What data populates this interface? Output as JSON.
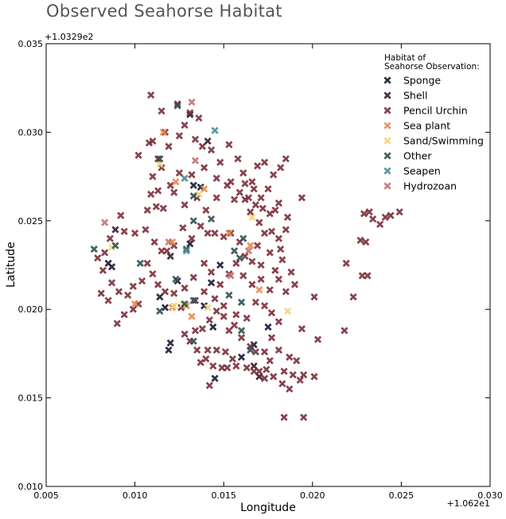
{
  "chart_data": {
    "type": "scatter",
    "title": "Observed Seahorse Habitat",
    "xlabel": "Longitude",
    "ylabel": "Latitude",
    "xlim": [
      0.005,
      0.03
    ],
    "ylim": [
      0.01,
      0.035
    ],
    "x_offset_label": "+1.062e1",
    "y_offset_label": "+1.0329e2",
    "x_ticks": [
      0.005,
      0.01,
      0.015,
      0.02,
      0.025,
      0.03
    ],
    "x_tick_labels": [
      "0.005",
      "0.010",
      "0.015",
      "0.020",
      "0.025",
      "0.030"
    ],
    "y_ticks": [
      0.01,
      0.015,
      0.02,
      0.025,
      0.03,
      0.035
    ],
    "y_tick_labels": [
      "0.010",
      "0.015",
      "0.020",
      "0.025",
      "0.030",
      "0.035"
    ],
    "grid": false,
    "legend_title": "Habitat of\nSeahorse Observation:",
    "legend_position": "top-right",
    "series": [
      {
        "name": "Sponge",
        "color": "#1c1a33",
        "points": [
          [
            0.0131,
            0.031
          ],
          [
            0.0133,
            0.027
          ],
          [
            0.0137,
            0.0269
          ],
          [
            0.0114,
            0.0207
          ],
          [
            0.0117,
            0.0201
          ],
          [
            0.0124,
            0.0216
          ],
          [
            0.0131,
            0.0237
          ],
          [
            0.0148,
            0.0225
          ],
          [
            0.0143,
            0.0215
          ],
          [
            0.0139,
            0.0202
          ],
          [
            0.0144,
            0.019
          ],
          [
            0.012,
            0.0181
          ],
          [
            0.0119,
            0.0177
          ],
          [
            0.016,
            0.0173
          ],
          [
            0.0167,
            0.018
          ],
          [
            0.0175,
            0.019
          ],
          [
            0.0145,
            0.0161
          ],
          [
            0.0085,
            0.0226
          ],
          [
            0.0087,
            0.0224
          ]
        ]
      },
      {
        "name": "Shell",
        "color": "#3a1c2c",
        "points": [
          [
            0.0089,
            0.0245
          ],
          [
            0.0141,
            0.0295
          ],
          [
            0.012,
            0.023
          ],
          [
            0.0167,
            0.0168
          ],
          [
            0.017,
            0.0162
          ]
        ]
      },
      {
        "name": "Pencil Urchin",
        "color": "#7b2e38",
        "points": [
          [
            0.0109,
            0.0321
          ],
          [
            0.0115,
            0.0312
          ],
          [
            0.0124,
            0.0316
          ],
          [
            0.0131,
            0.0311
          ],
          [
            0.0136,
            0.0308
          ],
          [
            0.0117,
            0.03
          ],
          [
            0.0128,
            0.0304
          ],
          [
            0.0134,
            0.0296
          ],
          [
            0.0125,
            0.0298
          ],
          [
            0.0119,
            0.0292
          ],
          [
            0.0108,
            0.0294
          ],
          [
            0.011,
            0.0295
          ],
          [
            0.0113,
            0.0285
          ],
          [
            0.0102,
            0.0287
          ],
          [
            0.0138,
            0.0292
          ],
          [
            0.0143,
            0.029
          ],
          [
            0.0148,
            0.0283
          ],
          [
            0.0153,
            0.0293
          ],
          [
            0.0158,
            0.0285
          ],
          [
            0.0161,
            0.0277
          ],
          [
            0.0154,
            0.0272
          ],
          [
            0.0146,
            0.0274
          ],
          [
            0.0139,
            0.028
          ],
          [
            0.0132,
            0.0276
          ],
          [
            0.0125,
            0.0277
          ],
          [
            0.012,
            0.027
          ],
          [
            0.0113,
            0.0267
          ],
          [
            0.0109,
            0.0265
          ],
          [
            0.0107,
            0.0256
          ],
          [
            0.0112,
            0.0258
          ],
          [
            0.0116,
            0.0257
          ],
          [
            0.0122,
            0.0266
          ],
          [
            0.0128,
            0.0259
          ],
          [
            0.0135,
            0.0263
          ],
          [
            0.014,
            0.0256
          ],
          [
            0.0146,
            0.0263
          ],
          [
            0.0152,
            0.027
          ],
          [
            0.0156,
            0.0262
          ],
          [
            0.0162,
            0.0262
          ],
          [
            0.0167,
            0.0268
          ],
          [
            0.0171,
            0.0263
          ],
          [
            0.0165,
            0.0255
          ],
          [
            0.017,
            0.0249
          ],
          [
            0.0176,
            0.0254
          ],
          [
            0.0181,
            0.026
          ],
          [
            0.0175,
            0.0268
          ],
          [
            0.0178,
            0.0276
          ],
          [
            0.0182,
            0.028
          ],
          [
            0.0185,
            0.0285
          ],
          [
            0.0173,
            0.0283
          ],
          [
            0.0169,
            0.0281
          ],
          [
            0.0166,
            0.0272
          ],
          [
            0.0162,
            0.0271
          ],
          [
            0.0159,
            0.0266
          ],
          [
            0.0164,
            0.0263
          ],
          [
            0.0168,
            0.0259
          ],
          [
            0.0172,
            0.0257
          ],
          [
            0.0179,
            0.0256
          ],
          [
            0.0186,
            0.0252
          ],
          [
            0.0194,
            0.0263
          ],
          [
            0.0185,
            0.0245
          ],
          [
            0.0181,
            0.024
          ],
          [
            0.0177,
            0.0244
          ],
          [
            0.0173,
            0.0243
          ],
          [
            0.0169,
            0.0236
          ],
          [
            0.0176,
            0.0232
          ],
          [
            0.0182,
            0.0234
          ],
          [
            0.0183,
            0.0228
          ],
          [
            0.0179,
            0.0222
          ],
          [
            0.0171,
            0.0225
          ],
          [
            0.0166,
            0.0227
          ],
          [
            0.0162,
            0.023
          ],
          [
            0.0159,
            0.0238
          ],
          [
            0.0154,
            0.0243
          ],
          [
            0.015,
            0.0241
          ],
          [
            0.0145,
            0.0243
          ],
          [
            0.0141,
            0.0243
          ],
          [
            0.0137,
            0.0247
          ],
          [
            0.0132,
            0.024
          ],
          [
            0.0127,
            0.0246
          ],
          [
            0.0122,
            0.0236
          ],
          [
            0.0118,
            0.0233
          ],
          [
            0.0115,
            0.0233
          ],
          [
            0.0111,
            0.0238
          ],
          [
            0.0106,
            0.0245
          ],
          [
            0.01,
            0.0243
          ],
          [
            0.0094,
            0.0244
          ],
          [
            0.0092,
            0.0253
          ],
          [
            0.0086,
            0.024
          ],
          [
            0.0083,
            0.0232
          ],
          [
            0.0079,
            0.0229
          ],
          [
            0.0082,
            0.0222
          ],
          [
            0.0087,
            0.0215
          ],
          [
            0.0091,
            0.021
          ],
          [
            0.0096,
            0.0208
          ],
          [
            0.0099,
            0.0213
          ],
          [
            0.0104,
            0.0216
          ],
          [
            0.0102,
            0.0203
          ],
          [
            0.0099,
            0.02
          ],
          [
            0.0094,
            0.0197
          ],
          [
            0.009,
            0.0192
          ],
          [
            0.0085,
            0.0205
          ],
          [
            0.0081,
            0.0209
          ],
          [
            0.0107,
            0.0226
          ],
          [
            0.011,
            0.022
          ],
          [
            0.0113,
            0.0214
          ],
          [
            0.0117,
            0.021
          ],
          [
            0.0122,
            0.0209
          ],
          [
            0.0128,
            0.0212
          ],
          [
            0.0133,
            0.0218
          ],
          [
            0.0139,
            0.0226
          ],
          [
            0.0143,
            0.0221
          ],
          [
            0.0148,
            0.0214
          ],
          [
            0.0153,
            0.022
          ],
          [
            0.0157,
            0.0226
          ],
          [
            0.0161,
            0.0219
          ],
          [
            0.0166,
            0.0214
          ],
          [
            0.0171,
            0.0217
          ],
          [
            0.0176,
            0.0211
          ],
          [
            0.0181,
            0.0217
          ],
          [
            0.0185,
            0.021
          ],
          [
            0.0188,
            0.0221
          ],
          [
            0.019,
            0.0214
          ],
          [
            0.0201,
            0.0207
          ],
          [
            0.0219,
            0.0226
          ],
          [
            0.0223,
            0.0207
          ],
          [
            0.0228,
            0.0219
          ],
          [
            0.0227,
            0.0239
          ],
          [
            0.023,
            0.0238
          ],
          [
            0.0229,
            0.0254
          ],
          [
            0.0232,
            0.0255
          ],
          [
            0.0234,
            0.0251
          ],
          [
            0.0238,
            0.0248
          ],
          [
            0.0241,
            0.0252
          ],
          [
            0.0244,
            0.0253
          ],
          [
            0.0249,
            0.0255
          ],
          [
            0.0231,
            0.0219
          ],
          [
            0.0218,
            0.0188
          ],
          [
            0.0194,
            0.0189
          ],
          [
            0.0203,
            0.0183
          ],
          [
            0.0191,
            0.0171
          ],
          [
            0.0187,
            0.0173
          ],
          [
            0.0184,
            0.0165
          ],
          [
            0.0189,
            0.0163
          ],
          [
            0.0193,
            0.016
          ],
          [
            0.0195,
            0.0163
          ],
          [
            0.0201,
            0.0162
          ],
          [
            0.0187,
            0.0155
          ],
          [
            0.0183,
            0.0158
          ],
          [
            0.0178,
            0.0162
          ],
          [
            0.0174,
            0.0166
          ],
          [
            0.017,
            0.0165
          ],
          [
            0.0176,
            0.0171
          ],
          [
            0.0181,
            0.0177
          ],
          [
            0.0173,
            0.0176
          ],
          [
            0.0168,
            0.0176
          ],
          [
            0.0165,
            0.0179
          ],
          [
            0.016,
            0.0184
          ],
          [
            0.0156,
            0.0191
          ],
          [
            0.0153,
            0.0188
          ],
          [
            0.015,
            0.0196
          ],
          [
            0.0146,
            0.0199
          ],
          [
            0.0142,
            0.0194
          ],
          [
            0.0138,
            0.0189
          ],
          [
            0.0134,
            0.0188
          ],
          [
            0.0131,
            0.0182
          ],
          [
            0.0128,
            0.0186
          ],
          [
            0.0135,
            0.0177
          ],
          [
            0.0141,
            0.0177
          ],
          [
            0.0146,
            0.0177
          ],
          [
            0.0151,
            0.0176
          ],
          [
            0.0155,
            0.0172
          ],
          [
            0.0157,
            0.0168
          ],
          [
            0.0149,
            0.0167
          ],
          [
            0.0144,
            0.0168
          ],
          [
            0.014,
            0.0172
          ],
          [
            0.0137,
            0.017
          ],
          [
            0.0152,
            0.0167
          ],
          [
            0.0167,
            0.0165
          ],
          [
            0.0163,
            0.0167
          ],
          [
            0.0173,
            0.0161
          ],
          [
            0.0184,
            0.0139
          ],
          [
            0.0195,
            0.0139
          ],
          [
            0.0177,
            0.0184
          ],
          [
            0.0181,
            0.0193
          ],
          [
            0.0177,
            0.0198
          ],
          [
            0.0173,
            0.0202
          ],
          [
            0.0168,
            0.0204
          ],
          [
            0.0163,
            0.0195
          ],
          [
            0.0157,
            0.0197
          ],
          [
            0.015,
            0.0202
          ],
          [
            0.0145,
            0.0206
          ],
          [
            0.0139,
            0.021
          ],
          [
            0.0134,
            0.0205
          ],
          [
            0.0126,
            0.0201
          ],
          [
            0.0142,
            0.0157
          ],
          [
            0.011,
            0.0275
          ],
          [
            0.0115,
            0.028
          ]
        ]
      },
      {
        "name": "Sea plant",
        "color": "#e8894a",
        "points": [
          [
            0.0116,
            0.03
          ],
          [
            0.0123,
            0.0272
          ],
          [
            0.0139,
            0.0268
          ],
          [
            0.0121,
            0.0238
          ],
          [
            0.0165,
            0.0236
          ],
          [
            0.01,
            0.0203
          ],
          [
            0.0121,
            0.0201
          ],
          [
            0.0129,
            0.0202
          ],
          [
            0.0132,
            0.0196
          ],
          [
            0.017,
            0.0211
          ],
          [
            0.0153,
            0.0243
          ]
        ]
      },
      {
        "name": "Sand/Swimming",
        "color": "#f0d580",
        "points": [
          [
            0.0114,
            0.0282
          ],
          [
            0.0136,
            0.0265
          ],
          [
            0.0122,
            0.0202
          ],
          [
            0.0127,
            0.0203
          ],
          [
            0.0141,
            0.0201
          ],
          [
            0.0166,
            0.0252
          ],
          [
            0.0186,
            0.0199
          ],
          [
            0.0087,
            0.0235
          ]
        ]
      },
      {
        "name": "Other",
        "color": "#2c4f52",
        "points": [
          [
            0.0114,
            0.0285
          ],
          [
            0.0124,
            0.0315
          ],
          [
            0.0133,
            0.0264
          ],
          [
            0.0143,
            0.0251
          ],
          [
            0.0077,
            0.0234
          ],
          [
            0.0089,
            0.0236
          ],
          [
            0.0103,
            0.0226
          ],
          [
            0.0129,
            0.0234
          ],
          [
            0.0133,
            0.025
          ],
          [
            0.0123,
            0.0217
          ],
          [
            0.0128,
            0.0203
          ],
          [
            0.0133,
            0.0205
          ],
          [
            0.0153,
            0.0208
          ],
          [
            0.0156,
            0.0233
          ],
          [
            0.0161,
            0.024
          ],
          [
            0.0159,
            0.0229
          ],
          [
            0.016,
            0.0204
          ],
          [
            0.016,
            0.0188
          ],
          [
            0.0165,
            0.0177
          ],
          [
            0.0133,
            0.0182
          ],
          [
            0.0114,
            0.0199
          ]
        ]
      },
      {
        "name": "Seapen",
        "color": "#4a8c98",
        "points": [
          [
            0.0145,
            0.0301
          ],
          [
            0.0128,
            0.0274
          ],
          [
            0.0129,
            0.0233
          ]
        ]
      },
      {
        "name": "Hydrozoan",
        "color": "#c87070",
        "points": [
          [
            0.0132,
            0.0317
          ],
          [
            0.0134,
            0.0284
          ],
          [
            0.0083,
            0.0249
          ],
          [
            0.0119,
            0.0238
          ],
          [
            0.0154,
            0.0219
          ],
          [
            0.0164,
            0.0233
          ]
        ]
      }
    ]
  }
}
